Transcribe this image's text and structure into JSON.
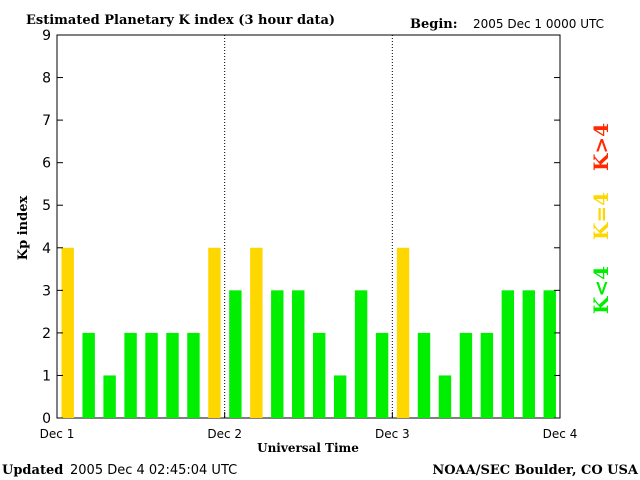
{
  "header": {
    "title": "Estimated Planetary K index (3 hour data)",
    "begin_label": "Begin:",
    "begin_value": "2005 Dec 1 0000 UTC"
  },
  "footer": {
    "updated_label": "Updated",
    "updated_value": "2005 Dec  4 02:45:04 UTC",
    "source": "NOAA/SEC Boulder, CO USA"
  },
  "legend": {
    "low": "K<4",
    "mid": "K=4",
    "high": "K>4"
  },
  "colors": {
    "low": "#00ee00",
    "mid": "#ffd700",
    "high": "#ff2a00",
    "frame": "#000000"
  },
  "chart_data": {
    "type": "bar",
    "xlabel": "Universal Time",
    "ylabel": "Kp index",
    "ylim": [
      0,
      9
    ],
    "yticks": [
      0,
      1,
      2,
      3,
      4,
      5,
      6,
      7,
      8,
      9
    ],
    "x_ticks": [
      "Dec 1",
      "Dec 2",
      "Dec 3",
      "Dec 4"
    ],
    "interval_hours": 3,
    "values": [
      4,
      2,
      1,
      2,
      2,
      2,
      2,
      4,
      3,
      4,
      3,
      3,
      2,
      1,
      3,
      2,
      4,
      2,
      1,
      2,
      2,
      3,
      3,
      3
    ],
    "day_separators": [
      "Dec 2",
      "Dec 3"
    ]
  }
}
